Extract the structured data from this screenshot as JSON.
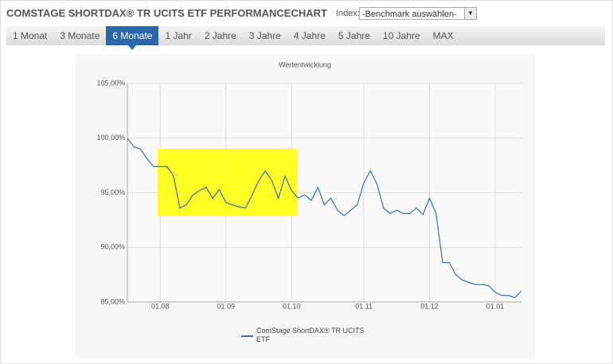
{
  "header": {
    "title": "COMSTAGE SHORTDAX® TR UCITS ETF PERFORMANCECHART",
    "index_label": "Index:",
    "select": "-Benchmark auswählen-"
  },
  "tabs": [
    "1 Monat",
    "3 Monate",
    "6 Monate",
    "1 Jahr",
    "2 Jahre",
    "3 Jahre",
    "4 Jahre",
    "5 Jahre",
    "10 Jahre",
    "MAX"
  ],
  "active_tab": 2,
  "chart_data": {
    "type": "line",
    "title": "Wertentwicklung",
    "categories": [
      null,
      null,
      null,
      null,
      null,
      "01.08",
      null,
      null,
      null,
      null,
      null,
      null,
      null,
      null,
      null,
      "01.09",
      null,
      null,
      null,
      null,
      null,
      null,
      null,
      null,
      null,
      "01.10",
      null,
      null,
      null,
      null,
      null,
      null,
      null,
      null,
      null,
      null,
      "01.11",
      null,
      null,
      null,
      null,
      null,
      null,
      null,
      null,
      null,
      "01.12",
      null,
      null,
      null,
      null,
      null,
      null,
      null,
      null,
      null,
      "01.01",
      null,
      null,
      null,
      null
    ],
    "series": [
      {
        "name": "ComStage ShortDAX® TR UCITS ETF",
        "color": "#3a6fae",
        "values": [
          100.0,
          99.2,
          99.0,
          98.1,
          97.4,
          97.4,
          97.4,
          96.6,
          93.6,
          93.9,
          94.8,
          95.2,
          95.5,
          94.5,
          95.3,
          94.1,
          93.9,
          93.7,
          93.6,
          94.8,
          96.1,
          97.0,
          96.1,
          94.5,
          96.5,
          95.2,
          94.5,
          94.8,
          94.3,
          95.5,
          93.9,
          94.5,
          93.4,
          92.9,
          93.4,
          93.9,
          95.9,
          97.0,
          95.8,
          93.6,
          93.1,
          93.4,
          93.1,
          93.1,
          93.6,
          93.0,
          94.5,
          93.1,
          88.6,
          88.6,
          87.5,
          87.0,
          86.8,
          86.6,
          86.6,
          86.5,
          85.9,
          85.6,
          85.6,
          85.4,
          86.0
        ]
      }
    ],
    "ylim": [
      85,
      105
    ],
    "yticks": [
      {
        "value": 85,
        "label": "85,00%"
      },
      {
        "value": 90,
        "label": "90,00%"
      },
      {
        "value": 95,
        "label": "95,00%"
      },
      {
        "value": 100,
        "label": "100,00%"
      },
      {
        "value": 105,
        "label": "105,00%"
      }
    ],
    "grid": true
  }
}
